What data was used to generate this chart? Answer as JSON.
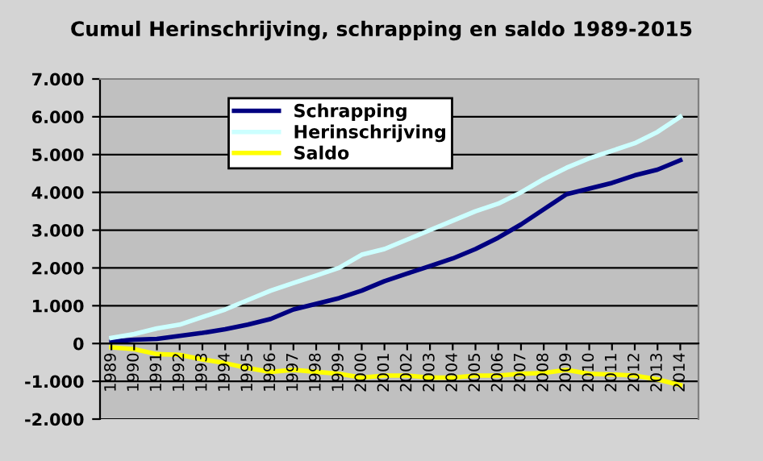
{
  "chart_data": {
    "type": "line",
    "title": "Cumul Herinschrijving, schrapping en saldo 1989-2015",
    "categories": [
      "1989",
      "1990",
      "1991",
      "1992",
      "1993",
      "1994",
      "1995",
      "1996",
      "1997",
      "1998",
      "1999",
      "2000",
      "2001",
      "2002",
      "2003",
      "2004",
      "2005",
      "2006",
      "2007",
      "2008",
      "2009",
      "2010",
      "2011",
      "2012",
      "2013",
      "2014"
    ],
    "series": [
      {
        "name": "Schrapping",
        "color": "#000080",
        "values": [
          50,
          100,
          120,
          200,
          280,
          380,
          500,
          650,
          900,
          1050,
          1200,
          1400,
          1650,
          1850,
          2050,
          2250,
          2500,
          2800,
          3150,
          3550,
          3950,
          4100,
          4250,
          4450,
          4600,
          4850
        ]
      },
      {
        "name": "Herinschrijving",
        "color": "#ccffff",
        "values": [
          150,
          250,
          400,
          500,
          700,
          900,
          1150,
          1400,
          1600,
          1800,
          2000,
          2350,
          2500,
          2750,
          3000,
          3250,
          3500,
          3700,
          4000,
          4350,
          4650,
          4900,
          5100,
          5300,
          5600,
          6000
        ]
      },
      {
        "name": "Saldo",
        "color": "#ffff00",
        "values": [
          -100,
          -150,
          -280,
          -300,
          -420,
          -520,
          -650,
          -750,
          -700,
          -750,
          -800,
          -900,
          -850,
          -850,
          -900,
          -900,
          -850,
          -850,
          -800,
          -780,
          -700,
          -800,
          -820,
          -850,
          -950,
          -1100
        ]
      }
    ],
    "ylim": [
      -2000,
      7000
    ],
    "yticks": [
      {
        "value": -2000,
        "label": "-2.000"
      },
      {
        "value": -1000,
        "label": "-1.000"
      },
      0,
      {
        "value": 1000,
        "label": "1.000"
      },
      {
        "value": 2000,
        "label": "2.000"
      },
      {
        "value": 3000,
        "label": "3.000"
      },
      {
        "value": 4000,
        "label": "4.000"
      },
      {
        "value": 5000,
        "label": "5.000"
      },
      {
        "value": 6000,
        "label": "6.000"
      },
      {
        "value": 7000,
        "label": "7.000"
      }
    ],
    "grid": "y",
    "legend": "top left",
    "marker": "none",
    "line_style": "solid"
  }
}
